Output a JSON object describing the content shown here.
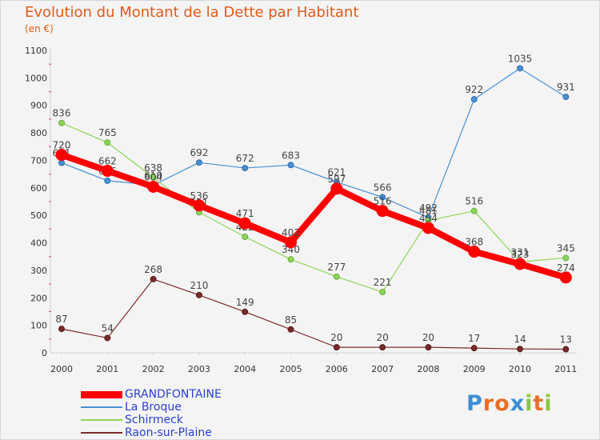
{
  "title": "Evolution du Montant de la Dette par Habitant",
  "subtitle": "(en €)",
  "logo": {
    "text": "Proxiti",
    "letters": [
      "P",
      "r",
      "o",
      "x",
      "i",
      "t",
      "i"
    ],
    "colors": [
      "#3c8fd4",
      "#e8702a",
      "#e8702a",
      "#3c8fd4",
      "#8cc63f",
      "#e8702a",
      "#8cc63f"
    ]
  },
  "chart_data": {
    "type": "line",
    "categories": [
      "2000",
      "2001",
      "2002",
      "2003",
      "2004",
      "2005",
      "2006",
      "2007",
      "2008",
      "2009",
      "2010",
      "2011"
    ],
    "ylim": [
      0,
      1100
    ],
    "yticks": [
      0,
      100,
      200,
      300,
      400,
      500,
      600,
      700,
      800,
      900,
      1000,
      1100
    ],
    "grid": false,
    "legend_position": "bottom-left",
    "series": [
      {
        "name": "La Broque",
        "color": "#4a8fd0",
        "values": [
          691,
          626,
          610,
          692,
          672,
          683,
          621,
          566,
          492,
          922,
          1035,
          931
        ],
        "line_width": 1.2,
        "marker_radius": 3.5,
        "marker_stroke": "#2b6fb3"
      },
      {
        "name": "Schirmeck",
        "color": "#8fd45a",
        "values": [
          836,
          765,
          638,
          511,
          422,
          340,
          277,
          221,
          481,
          516,
          331,
          345
        ],
        "line_width": 1.2,
        "marker_radius": 3.5,
        "marker_stroke": "#66b23a"
      },
      {
        "name": "Raon-sur-Plaine",
        "color": "#7a2a2a",
        "values": [
          87,
          54,
          268,
          210,
          149,
          85,
          20,
          20,
          20,
          17,
          14,
          13
        ],
        "line_width": 1.2,
        "marker_radius": 3.5,
        "marker_stroke": "#5a1a1a"
      },
      {
        "name": "GRANDFONTAINE",
        "color": "#ff0000",
        "values": [
          720,
          662,
          604,
          536,
          471,
          402,
          597,
          516,
          454,
          368,
          323,
          274
        ],
        "line_width": 8,
        "marker_radius": 7,
        "marker_stroke": "#ff0000"
      }
    ],
    "legend_order": [
      "GRANDFONTAINE",
      "La Broque",
      "Schirmeck",
      "Raon-sur-Plaine"
    ]
  }
}
